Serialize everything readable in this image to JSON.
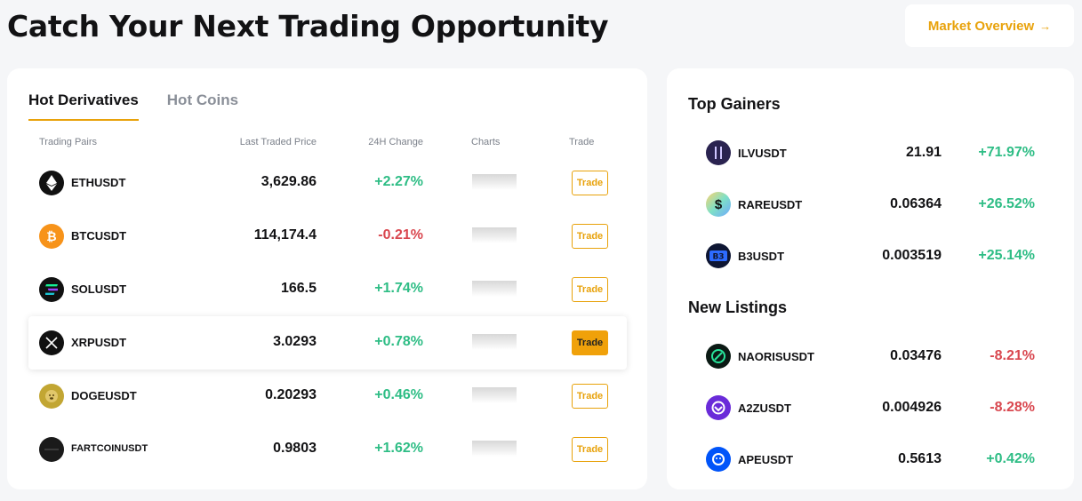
{
  "header": {
    "title": "Catch Your Next Trading Opportunity",
    "overview_label": "Market Overview",
    "overview_arrow": "→"
  },
  "tabs": [
    {
      "label": "Hot Derivatives",
      "active": true
    },
    {
      "label": "Hot Coins",
      "active": false
    }
  ],
  "table": {
    "columns": {
      "pair": "Trading Pairs",
      "price": "Last Traded Price",
      "change": "24H Change",
      "charts": "Charts",
      "trade": "Trade"
    },
    "rows": [
      {
        "pair": "ETHUSDT",
        "price": "3,629.86",
        "change": "+2.27%",
        "direction": "up",
        "trade": "Trade",
        "icon": "ethereum-icon",
        "color": "#111111"
      },
      {
        "pair": "BTCUSDT",
        "price": "114,174.4",
        "change": "-0.21%",
        "direction": "down",
        "trade": "Trade",
        "icon": "bitcoin-icon",
        "color": "#f7931a"
      },
      {
        "pair": "SOLUSDT",
        "price": "166.5",
        "change": "+1.74%",
        "direction": "up",
        "trade": "Trade",
        "icon": "solana-icon",
        "color": "#111111"
      },
      {
        "pair": "XRPUSDT",
        "price": "3.0293",
        "change": "+0.78%",
        "direction": "up",
        "trade": "Trade",
        "icon": "xrp-icon",
        "color": "#111111"
      },
      {
        "pair": "DOGEUSDT",
        "price": "0.20293",
        "change": "+0.46%",
        "direction": "up",
        "trade": "Trade",
        "icon": "dogecoin-icon",
        "color": "#c2a633"
      },
      {
        "pair": "FARTCOINUSDT",
        "price": "0.9803",
        "change": "+1.62%",
        "direction": "up",
        "trade": "Trade",
        "icon": "fartcoin-icon",
        "color": "#1a1a1a"
      }
    ]
  },
  "top_gainers": {
    "title": "Top Gainers",
    "items": [
      {
        "pair": "ILVUSDT",
        "price": "21.91",
        "change": "+71.97%",
        "direction": "up",
        "icon": "illuvium-icon",
        "color": "#2a2350"
      },
      {
        "pair": "RAREUSDT",
        "price": "0.06364",
        "change": "+26.52%",
        "direction": "up",
        "icon": "rare-icon",
        "color": "#7ee0c6"
      },
      {
        "pair": "B3USDT",
        "price": "0.003519",
        "change": "+25.14%",
        "direction": "up",
        "icon": "b3-icon",
        "color": "#1f2a5a"
      }
    ]
  },
  "new_listings": {
    "title": "New Listings",
    "items": [
      {
        "pair": "NAORISUSDT",
        "price": "0.03476",
        "change": "-8.21%",
        "direction": "down",
        "icon": "naoris-icon",
        "color": "#0b1a14"
      },
      {
        "pair": "A2ZUSDT",
        "price": "0.004926",
        "change": "-8.28%",
        "direction": "down",
        "icon": "a2z-icon",
        "color": "#6a2bd9"
      },
      {
        "pair": "APEUSDT",
        "price": "0.5613",
        "change": "+0.42%",
        "direction": "up",
        "icon": "apecoin-icon",
        "color": "#0054f9"
      }
    ]
  }
}
